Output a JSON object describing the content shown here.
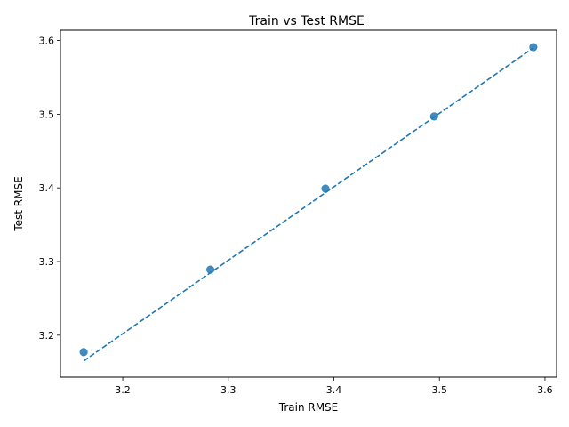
{
  "chart_data": {
    "type": "scatter",
    "title": "Train vs Test RMSE",
    "xlabel": "Train RMSE",
    "ylabel": "Test RMSE",
    "xlim": [
      3.141,
      3.611
    ],
    "ylim": [
      3.143,
      3.614
    ],
    "xticks": [
      3.2,
      3.3,
      3.4,
      3.5,
      3.6
    ],
    "yticks": [
      3.2,
      3.3,
      3.4,
      3.5,
      3.6
    ],
    "tick_labels_x": [
      "3.2",
      "3.3",
      "3.4",
      "3.5",
      "3.6"
    ],
    "tick_labels_y": [
      "3.2",
      "3.3",
      "3.4",
      "3.5",
      "3.6"
    ],
    "grid": false,
    "legend": "none",
    "series": [
      {
        "points": [
          {
            "x": 3.163,
            "y": 3.177
          },
          {
            "x": 3.283,
            "y": 3.289
          },
          {
            "x": 3.392,
            "y": 3.399
          },
          {
            "x": 3.495,
            "y": 3.497
          },
          {
            "x": 3.589,
            "y": 3.591
          }
        ],
        "color": "#1f77b4"
      }
    ],
    "fit_line": {
      "x": [
        3.163,
        3.589
      ],
      "y": [
        3.165,
        3.59
      ],
      "color": "#1f77b4",
      "style": "dashed"
    }
  }
}
